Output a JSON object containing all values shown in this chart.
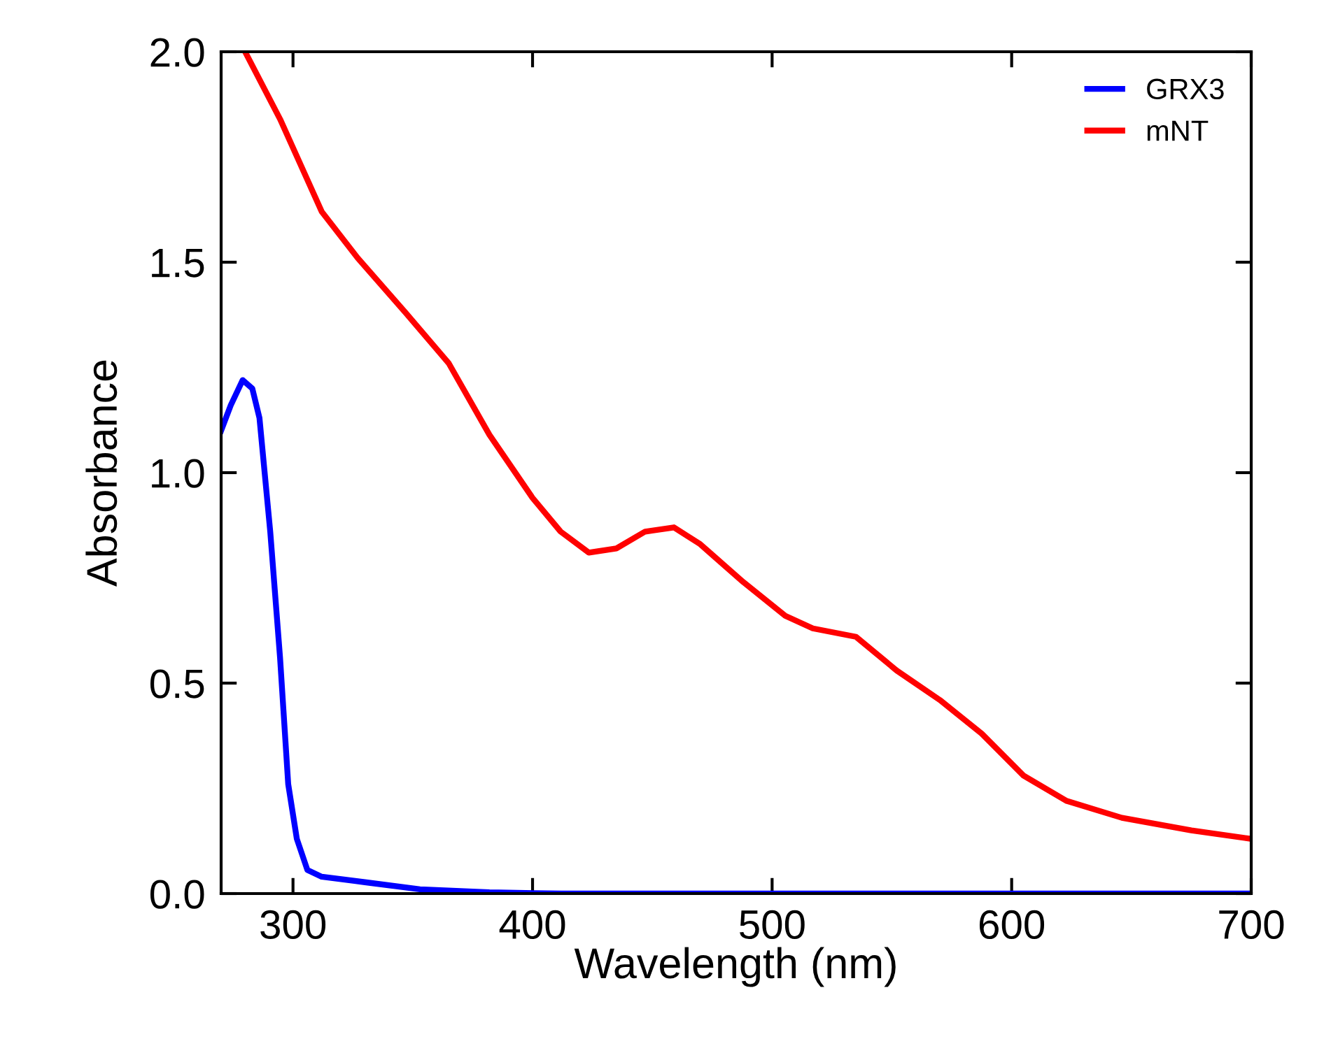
{
  "chart_data": {
    "type": "line",
    "xlabel": "Wavelength (nm)",
    "ylabel": "Absorbance",
    "xlim": [
      270,
      700
    ],
    "xticks": [
      300,
      400,
      500,
      600,
      700
    ],
    "ylim": [
      0,
      2.0
    ],
    "yticks": [
      {
        "value": 0,
        "label": "0.0"
      },
      {
        "value": 0.5,
        "label": "0.5"
      },
      {
        "value": 1.0,
        "label": "1.0"
      },
      {
        "value": 1.5,
        "label": "1.5"
      },
      {
        "value": 2.0,
        "label": "2.0"
      }
    ],
    "legend": "top right",
    "grid": false,
    "marker": "none",
    "line_style": "solid",
    "series": [
      {
        "name": "GRX3",
        "color": "#0000ff",
        "x": [
          270,
          274,
          279,
          283,
          286,
          290.5,
          294.6,
          298,
          301.6,
          306,
          312,
          330,
          353,
          382,
          412,
          700
        ],
        "values": [
          1.1,
          1.16,
          1.22,
          1.2,
          1.13,
          0.86,
          0.56,
          0.26,
          0.13,
          0.056,
          0.04,
          0.027,
          0.01,
          0.003,
          0,
          0
        ]
      },
      {
        "name": "mNT",
        "color": "#ff0000",
        "x": [
          280,
          294.6,
          312,
          327,
          347,
          365,
          382,
          400,
          411.7,
          423.5,
          435,
          447,
          459,
          470,
          488,
          505.5,
          517,
          535,
          552,
          570,
          587.5,
          605,
          623,
          646,
          675,
          700
        ],
        "values": [
          2.0,
          1.84,
          1.62,
          1.51,
          1.38,
          1.26,
          1.09,
          0.94,
          0.86,
          0.81,
          0.82,
          0.86,
          0.87,
          0.83,
          0.74,
          0.66,
          0.63,
          0.61,
          0.53,
          0.46,
          0.38,
          0.28,
          0.22,
          0.18,
          0.15,
          0.13
        ]
      }
    ]
  }
}
